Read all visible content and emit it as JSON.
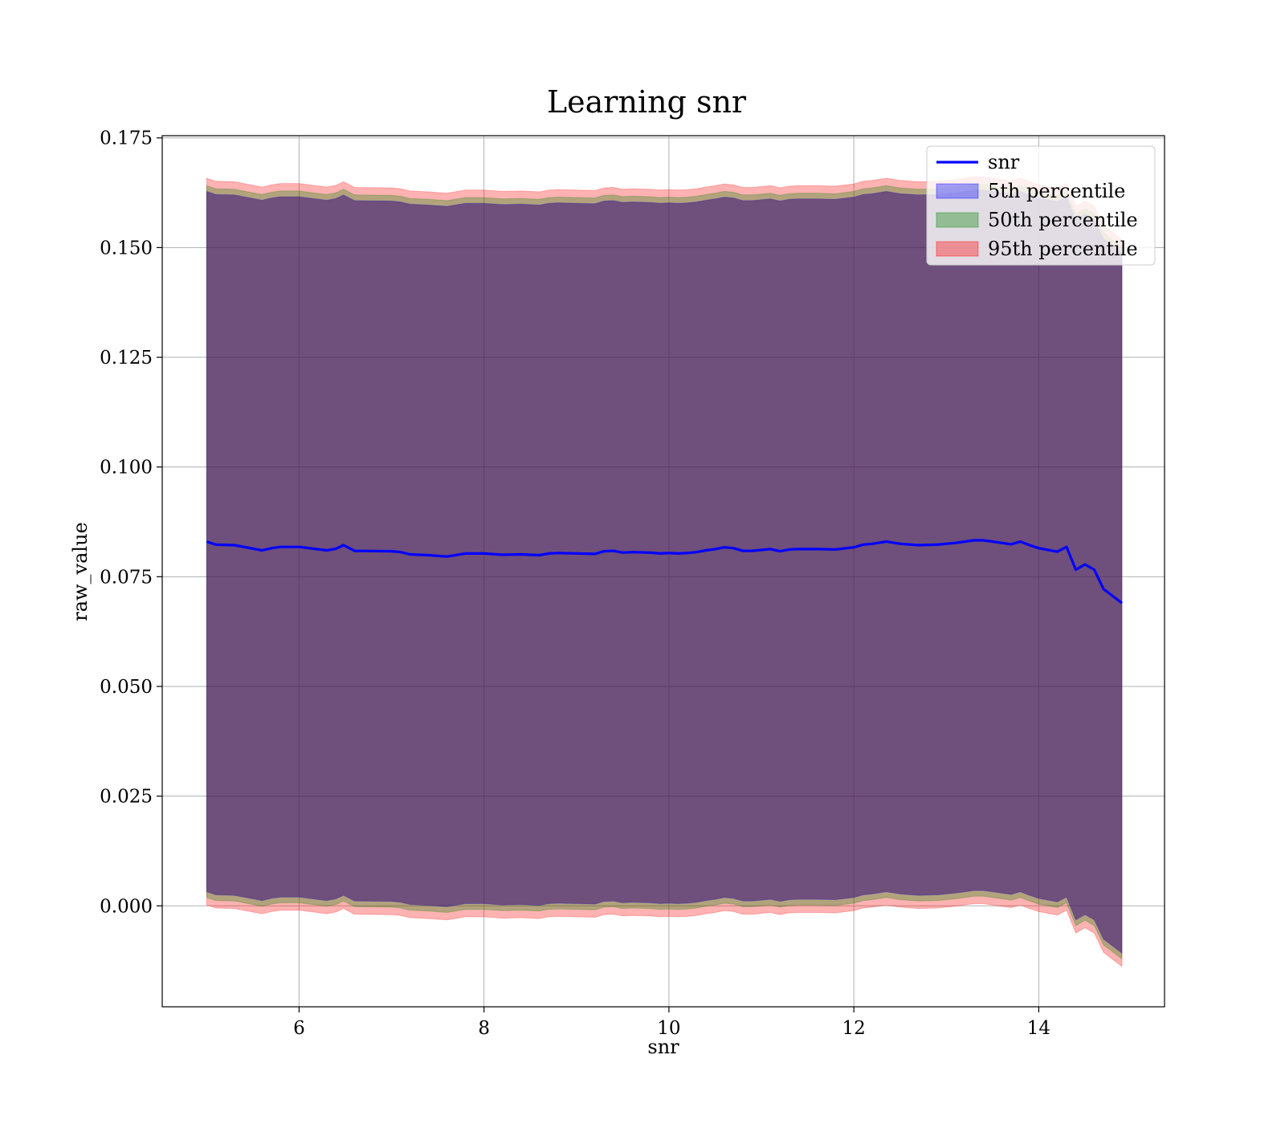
{
  "chart_data": {
    "type": "line",
    "title": "Learning snr",
    "xlabel": "snr",
    "ylabel": "raw_value",
    "xlim": [
      4.52,
      15.36
    ],
    "ylim": [
      -0.023,
      0.1755
    ],
    "grid": true,
    "legend_position": "top-right",
    "xticks": [
      {
        "value": 6,
        "label": "6"
      },
      {
        "value": 8,
        "label": "8"
      },
      {
        "value": 10,
        "label": "10"
      },
      {
        "value": 12,
        "label": "12"
      },
      {
        "value": 14,
        "label": "14"
      }
    ],
    "yticks": [
      {
        "value": 0.0,
        "label": "0.000"
      },
      {
        "value": 0.025,
        "label": "0.025"
      },
      {
        "value": 0.05,
        "label": "0.050"
      },
      {
        "value": 0.075,
        "label": "0.075"
      },
      {
        "value": 0.1,
        "label": "0.100"
      },
      {
        "value": 0.125,
        "label": "0.125"
      },
      {
        "value": 0.15,
        "label": "0.150"
      },
      {
        "value": 0.175,
        "label": "0.175"
      }
    ],
    "legend": [
      {
        "name": "snr",
        "kind": "line",
        "color": "#0000ff"
      },
      {
        "name": "5th percentile",
        "kind": "band",
        "color": "#0000ff"
      },
      {
        "name": "50th percentile",
        "kind": "band",
        "color": "#008000"
      },
      {
        "name": "95th percentile",
        "kind": "band",
        "color": "#ff0000"
      }
    ],
    "x": [
      5.0,
      5.1,
      5.3,
      5.6,
      5.7,
      5.8,
      6.0,
      6.3,
      6.4,
      6.48,
      6.6,
      7.0,
      7.1,
      7.2,
      7.4,
      7.6,
      7.8,
      8.0,
      8.2,
      8.4,
      8.6,
      8.7,
      8.8,
      9.2,
      9.3,
      9.4,
      9.5,
      9.6,
      9.8,
      9.9,
      10.0,
      10.1,
      10.2,
      10.3,
      10.4,
      10.5,
      10.6,
      10.7,
      10.8,
      10.9,
      11.0,
      11.1,
      11.2,
      11.3,
      11.4,
      11.6,
      11.8,
      12.0,
      12.1,
      12.2,
      12.35,
      12.5,
      12.7,
      12.9,
      13.0,
      13.1,
      13.3,
      13.4,
      13.5,
      13.7,
      13.8,
      13.9,
      14.0,
      14.2,
      14.3,
      14.4,
      14.5,
      14.6,
      14.7,
      14.9
    ],
    "series": [
      {
        "name": "snr",
        "color": "#0000ff",
        "values": [
          0.083,
          0.0823,
          0.0822,
          0.081,
          0.0815,
          0.0818,
          0.0818,
          0.081,
          0.0814,
          0.0822,
          0.0809,
          0.0808,
          0.0806,
          0.0801,
          0.0799,
          0.0796,
          0.0803,
          0.0803,
          0.08,
          0.0801,
          0.0799,
          0.0803,
          0.0804,
          0.0802,
          0.0808,
          0.0809,
          0.0805,
          0.0806,
          0.0805,
          0.0803,
          0.0804,
          0.0803,
          0.0804,
          0.0806,
          0.081,
          0.0813,
          0.0817,
          0.0815,
          0.0809,
          0.0809,
          0.0811,
          0.0813,
          0.0808,
          0.0812,
          0.0813,
          0.0813,
          0.0812,
          0.0817,
          0.0823,
          0.0825,
          0.083,
          0.0825,
          0.0822,
          0.0823,
          0.0825,
          0.0827,
          0.0833,
          0.0833,
          0.083,
          0.0824,
          0.083,
          0.0822,
          0.0815,
          0.0807,
          0.0818,
          0.0766,
          0.0778,
          0.0766,
          0.0722,
          0.069
        ]
      }
    ],
    "band_widths": {
      "5th percentile": 0.0798,
      "50th percentile": 0.0811,
      "95th percentile": 0.0828
    }
  }
}
